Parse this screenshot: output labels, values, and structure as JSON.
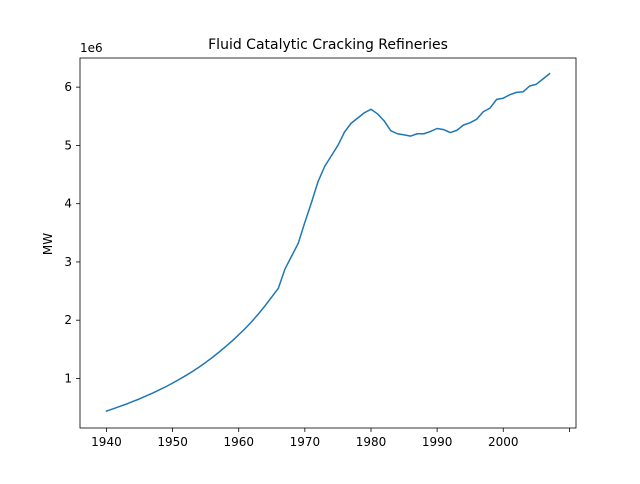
{
  "chart_data": {
    "type": "line",
    "title": "Fluid Catalytic Cracking Refineries",
    "xlabel": "",
    "ylabel": "MW",
    "y_offset_label": "1e6",
    "xlim": [
      1936,
      2011
    ],
    "ylim": [
      150000,
      6500000
    ],
    "xticks": [
      1940,
      1950,
      1960,
      1970,
      1980,
      1990,
      2000,
      2010
    ],
    "xtick_labels": [
      "1940",
      "1950",
      "1960",
      "1970",
      "1980",
      "1990",
      "2000",
      ""
    ],
    "yticks": [
      1000000,
      2000000,
      3000000,
      4000000,
      5000000,
      6000000
    ],
    "ytick_labels": [
      "1",
      "2",
      "3",
      "4",
      "5",
      "6"
    ],
    "grid": false,
    "series": [
      {
        "color": "#1f77b4",
        "x": [
          1940,
          1941,
          1942,
          1943,
          1944,
          1945,
          1946,
          1947,
          1948,
          1949,
          1950,
          1951,
          1952,
          1953,
          1954,
          1955,
          1956,
          1957,
          1958,
          1959,
          1960,
          1961,
          1962,
          1963,
          1964,
          1965,
          1966,
          1967,
          1968,
          1969,
          1970,
          1971,
          1972,
          1973,
          1974,
          1975,
          1976,
          1977,
          1978,
          1979,
          1980,
          1981,
          1982,
          1983,
          1984,
          1985,
          1986,
          1987,
          1988,
          1989,
          1990,
          1991,
          1992,
          1993,
          1994,
          1995,
          1996,
          1997,
          1998,
          1999,
          2000,
          2001,
          2002,
          2003,
          2004,
          2005,
          2006,
          2007
        ],
        "y": [
          440000,
          480000,
          520000,
          560000,
          605000,
          650000,
          700000,
          750000,
          805000,
          860000,
          920000,
          985000,
          1050000,
          1120000,
          1195000,
          1275000,
          1360000,
          1450000,
          1545000,
          1645000,
          1750000,
          1860000,
          1980000,
          2110000,
          2250000,
          2400000,
          2550000,
          2880000,
          3100000,
          3320000,
          3680000,
          4020000,
          4380000,
          4640000,
          4820000,
          5000000,
          5230000,
          5380000,
          5470000,
          5560000,
          5620000,
          5540000,
          5420000,
          5250000,
          5200000,
          5180000,
          5160000,
          5200000,
          5200000,
          5240000,
          5290000,
          5270000,
          5220000,
          5260000,
          5350000,
          5390000,
          5450000,
          5580000,
          5640000,
          5790000,
          5810000,
          5870000,
          5910000,
          5920000,
          6020000,
          6050000,
          6140000,
          6230000
        ]
      }
    ]
  }
}
